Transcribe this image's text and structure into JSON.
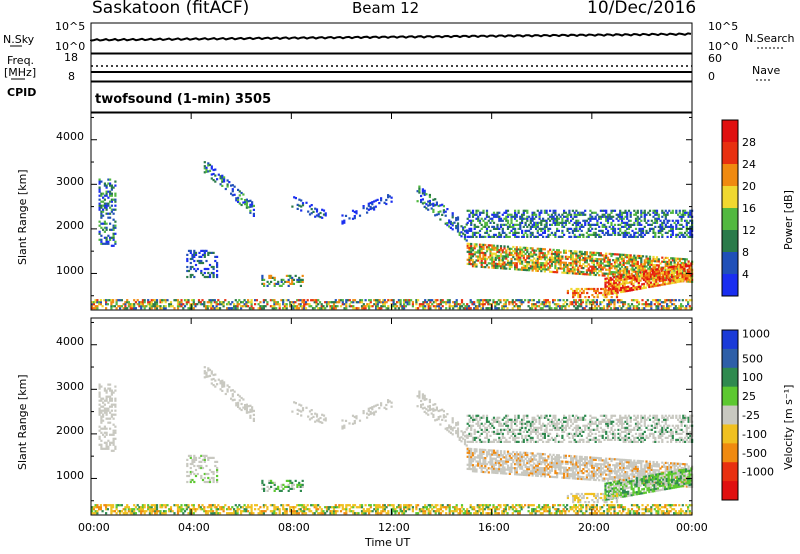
{
  "header": {
    "station": "Saskatoon (fitACF)",
    "beam": "Beam 12",
    "date": "10/Dec/2016"
  },
  "strips": {
    "nsky_label": "N.Sky",
    "nsky_ticks": [
      "10^5",
      "10^0"
    ],
    "nsearch_label": "N.Search",
    "nsearch_ticks": [
      "10^5",
      "10^0"
    ],
    "freq_label": "Freq.",
    "freq_unit": "[MHz]",
    "freq_ticks": [
      "18",
      "8"
    ],
    "nave_label": "Nave",
    "nave_ticks": [
      "60",
      "0"
    ],
    "cpid_label": "CPID",
    "cpid_text": "twofsound (1-min) 3505"
  },
  "chart_data": [
    {
      "type": "heatmap",
      "panel": "power",
      "ylabel": "Slant Range [km]",
      "y_ticks": [
        "1000",
        "2000",
        "3000",
        "4000"
      ],
      "ylim": [
        180,
        4600
      ],
      "colorbar_label": "Power [dB]",
      "colorbar_ticks": [
        "4",
        "8",
        "12",
        "16",
        "20",
        "24",
        "28"
      ],
      "colors": [
        "#1a2ef0",
        "#2050b8",
        "#2a7a4a",
        "#52b840",
        "#f0d830",
        "#f08a10",
        "#e83010",
        "#e01010"
      ]
    },
    {
      "type": "heatmap",
      "panel": "velocity",
      "ylabel": "Slant Range [km]",
      "y_ticks": [
        "1000",
        "2000",
        "3000",
        "4000"
      ],
      "ylim": [
        180,
        4600
      ],
      "colorbar_label": "Velocity [m s⁻¹]",
      "colorbar_ticks": [
        "1000",
        "500",
        "100",
        "25",
        "-25",
        "-100",
        "-500",
        "-1000"
      ],
      "colors": [
        "#1a3ad8",
        "#2e5fa8",
        "#2f8a4f",
        "#5cc830",
        "#c8c8c0",
        "#f0c020",
        "#f08a10",
        "#e83010",
        "#e01010"
      ]
    }
  ],
  "x_axis": {
    "ticks": [
      "00:00",
      "04:00",
      "08:00",
      "12:00",
      "16:00",
      "20:00",
      "00:00"
    ],
    "label": "Time UT"
  }
}
